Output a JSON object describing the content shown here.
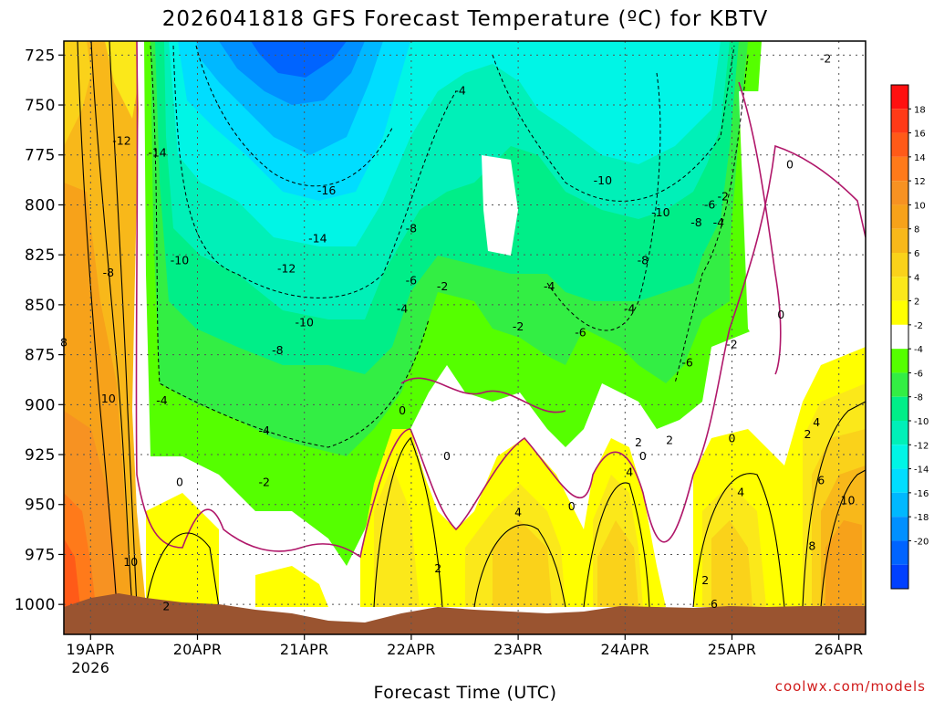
{
  "title": "2026041818 GFS Forecast Temperature (ºC) for KBTV",
  "xlabel": "Forecast Time (UTC)",
  "credit": "coolwx.com/models",
  "colors": {
    "terrain": "#9a5430",
    "zero_line": "#b0176a",
    "dashed_line": "#000000",
    "frame": "#000000"
  },
  "chart_data": {
    "type": "heatmap",
    "y_unit": "hPa",
    "y_ticks": [
      725,
      750,
      775,
      800,
      825,
      850,
      875,
      900,
      925,
      950,
      975,
      1000
    ],
    "y_range": [
      1015,
      718
    ],
    "x_ticks": [
      {
        "label": "19APR",
        "sub": "2026",
        "hour": 0
      },
      {
        "label": "20APR",
        "hour": 24
      },
      {
        "label": "21APR",
        "hour": 48
      },
      {
        "label": "22APR",
        "hour": 72
      },
      {
        "label": "23APR",
        "hour": 96
      },
      {
        "label": "24APR",
        "hour": 120
      },
      {
        "label": "25APR",
        "hour": 144
      },
      {
        "label": "26APR",
        "hour": 168
      }
    ],
    "x_range_hours": [
      -6,
      174
    ],
    "colorbar": [
      {
        "value": 18,
        "color": "#ff3a17"
      },
      {
        "value": 16,
        "color": "#ff5a18"
      },
      {
        "value": 14,
        "color": "#ff7a1a"
      },
      {
        "value": 12,
        "color": "#f79222"
      },
      {
        "value": 10,
        "color": "#f7a21a"
      },
      {
        "value": 8,
        "color": "#f8b81a"
      },
      {
        "value": 6,
        "color": "#fad21a"
      },
      {
        "value": 4,
        "color": "#fbe81a"
      },
      {
        "value": 2,
        "color": "#ffff00"
      },
      {
        "value": -2,
        "color": "#ffffff"
      },
      {
        "value": -4,
        "color": "#55ff00"
      },
      {
        "value": -6,
        "color": "#33ee44"
      },
      {
        "value": -8,
        "color": "#00ee88"
      },
      {
        "value": -10,
        "color": "#00f0b8"
      },
      {
        "value": -12,
        "color": "#00f5e6"
      },
      {
        "value": -14,
        "color": "#00ddff"
      },
      {
        "value": -16,
        "color": "#00b8ff"
      },
      {
        "value": -18,
        "color": "#0090ff"
      },
      {
        "value": -20,
        "color": "#0064ff"
      }
    ],
    "colorbar_top": "#ff1010",
    "colorbar_bottom": "#0040ff",
    "colorbar_labels": [
      "18",
      "16",
      "14",
      "12",
      "10",
      "8",
      "6",
      "4",
      "2",
      "-2",
      "-4",
      "-6",
      "-8",
      "-10",
      "-12",
      "-14",
      "-16",
      "-18",
      "-20"
    ],
    "contour_labels": [
      {
        "text": "-2",
        "hour": 165,
        "p": 727
      },
      {
        "text": "-4",
        "hour": 83,
        "p": 743
      },
      {
        "text": "-12",
        "hour": 7,
        "p": 768
      },
      {
        "text": "-14",
        "hour": 15,
        "p": 774
      },
      {
        "text": "-16",
        "hour": 53,
        "p": 793
      },
      {
        "text": "-10",
        "hour": 115,
        "p": 788
      },
      {
        "text": "-10",
        "hour": 128,
        "p": 804
      },
      {
        "text": "-6",
        "hour": 139,
        "p": 800
      },
      {
        "text": "-2",
        "hour": 142,
        "p": 796
      },
      {
        "text": "-8",
        "hour": 136,
        "p": 809
      },
      {
        "text": "-4",
        "hour": 141,
        "p": 809
      },
      {
        "text": "0",
        "hour": 157,
        "p": 780
      },
      {
        "text": "-8",
        "hour": 72,
        "p": 812
      },
      {
        "text": "-14",
        "hour": 51,
        "p": 817
      },
      {
        "text": "-10",
        "hour": 20,
        "p": 828
      },
      {
        "text": "-8",
        "hour": 4,
        "p": 834
      },
      {
        "text": "-12",
        "hour": 44,
        "p": 832
      },
      {
        "text": "-6",
        "hour": 72,
        "p": 838
      },
      {
        "text": "-2",
        "hour": 79,
        "p": 841
      },
      {
        "text": "-4",
        "hour": 103,
        "p": 841
      },
      {
        "text": "-8",
        "hour": 124,
        "p": 828
      },
      {
        "text": "-4",
        "hour": 70,
        "p": 852
      },
      {
        "text": "-4",
        "hour": 121,
        "p": 852
      },
      {
        "text": "0",
        "hour": 155,
        "p": 855
      },
      {
        "text": "-10",
        "hour": 48,
        "p": 859
      },
      {
        "text": "-2",
        "hour": 96,
        "p": 861
      },
      {
        "text": "-6",
        "hour": 110,
        "p": 864
      },
      {
        "text": "-8",
        "hour": 42,
        "p": 873
      },
      {
        "text": "8",
        "hour": -6,
        "p": 869
      },
      {
        "text": "-2",
        "hour": 144,
        "p": 870
      },
      {
        "text": "-6",
        "hour": 134,
        "p": 879
      },
      {
        "text": "10",
        "hour": 4,
        "p": 897
      },
      {
        "text": "-4",
        "hour": 16,
        "p": 898
      },
      {
        "text": "0",
        "hour": 70,
        "p": 903
      },
      {
        "text": "-4",
        "hour": 39,
        "p": 913
      },
      {
        "text": "4",
        "hour": 163,
        "p": 909
      },
      {
        "text": "2",
        "hour": 161,
        "p": 915
      },
      {
        "text": "0",
        "hour": 144,
        "p": 917
      },
      {
        "text": "2",
        "hour": 123,
        "p": 919
      },
      {
        "text": "2",
        "hour": 130,
        "p": 918
      },
      {
        "text": "0",
        "hour": 80,
        "p": 926
      },
      {
        "text": "0",
        "hour": 124,
        "p": 926
      },
      {
        "text": "4",
        "hour": 121,
        "p": 934
      },
      {
        "text": "0",
        "hour": 20,
        "p": 939
      },
      {
        "text": "-2",
        "hour": 39,
        "p": 939
      },
      {
        "text": "6",
        "hour": 164,
        "p": 938
      },
      {
        "text": "4",
        "hour": 146,
        "p": 944
      },
      {
        "text": "10",
        "hour": 170,
        "p": 948
      },
      {
        "text": "0",
        "hour": 108,
        "p": 951
      },
      {
        "text": "4",
        "hour": 96,
        "p": 954
      },
      {
        "text": "8",
        "hour": 162,
        "p": 971
      },
      {
        "text": "10",
        "hour": 9,
        "p": 979
      },
      {
        "text": "2",
        "hour": 78,
        "p": 982
      },
      {
        "text": "2",
        "hour": 138,
        "p": 988
      },
      {
        "text": "6",
        "hour": 140,
        "p": 1000
      },
      {
        "text": "2",
        "hour": 17,
        "p": 1001
      }
    ]
  }
}
